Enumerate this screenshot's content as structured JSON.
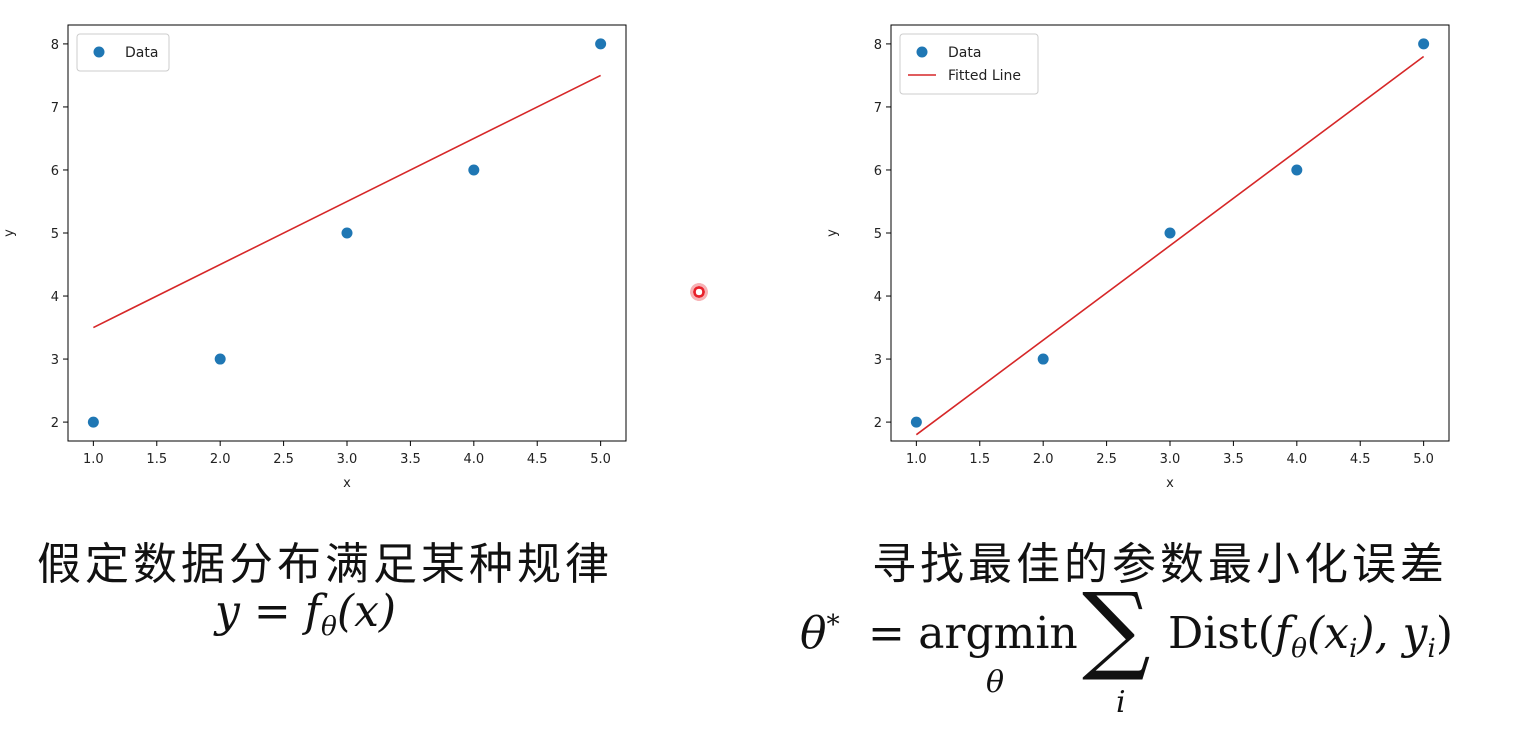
{
  "captions": {
    "left": "假定数据分布满足某种规律",
    "right": "寻找最佳的参数最小化误差"
  },
  "formula_left": {
    "y": "y",
    "eq": "=",
    "f": "f",
    "theta": "θ",
    "arg": "(x)"
  },
  "formula_right": {
    "theta_star": "θ",
    "star": "*",
    "eq": "=",
    "argmin": "argmin",
    "argmin_sub": "θ",
    "sigma": "∑",
    "sigma_sub": "i",
    "dist": "Dist(",
    "f": "f",
    "theta": "θ",
    "xi": "(x",
    "i1": "i",
    "mid": "), y",
    "i2": "i",
    "close": ")"
  },
  "colors": {
    "data": "#1f77b4",
    "line": "#d62728",
    "cursor": "#e8202a"
  },
  "chart_data": [
    {
      "type": "scatter",
      "xlabel": "x",
      "ylabel": "y",
      "xlim": [
        0.8,
        5.2
      ],
      "ylim": [
        1.7,
        8.3
      ],
      "xticks": [
        "1.0",
        "1.5",
        "2.0",
        "2.5",
        "3.0",
        "3.5",
        "4.0",
        "4.5",
        "5.0"
      ],
      "yticks": [
        "2",
        "3",
        "4",
        "5",
        "6",
        "7",
        "8"
      ],
      "legend_position": "top-left",
      "series": [
        {
          "name": "Data",
          "kind": "points",
          "x": [
            1,
            2,
            3,
            4,
            5
          ],
          "y": [
            2,
            3,
            5,
            6,
            8
          ]
        },
        {
          "kind": "line",
          "x": [
            1,
            5
          ],
          "y": [
            3.5,
            7.5
          ]
        }
      ]
    },
    {
      "type": "scatter",
      "xlabel": "x",
      "ylabel": "y",
      "xlim": [
        0.8,
        5.2
      ],
      "ylim": [
        1.7,
        8.3
      ],
      "xticks": [
        "1.0",
        "1.5",
        "2.0",
        "2.5",
        "3.0",
        "3.5",
        "4.0",
        "4.5",
        "5.0"
      ],
      "yticks": [
        "2",
        "3",
        "4",
        "5",
        "6",
        "7",
        "8"
      ],
      "legend_position": "top-left",
      "series": [
        {
          "name": "Data",
          "kind": "points",
          "x": [
            1,
            2,
            3,
            4,
            5
          ],
          "y": [
            2,
            3,
            5,
            6,
            8
          ]
        },
        {
          "name": "Fitted Line",
          "kind": "line",
          "x": [
            1,
            5
          ],
          "y": [
            1.8,
            7.8
          ]
        }
      ]
    }
  ]
}
